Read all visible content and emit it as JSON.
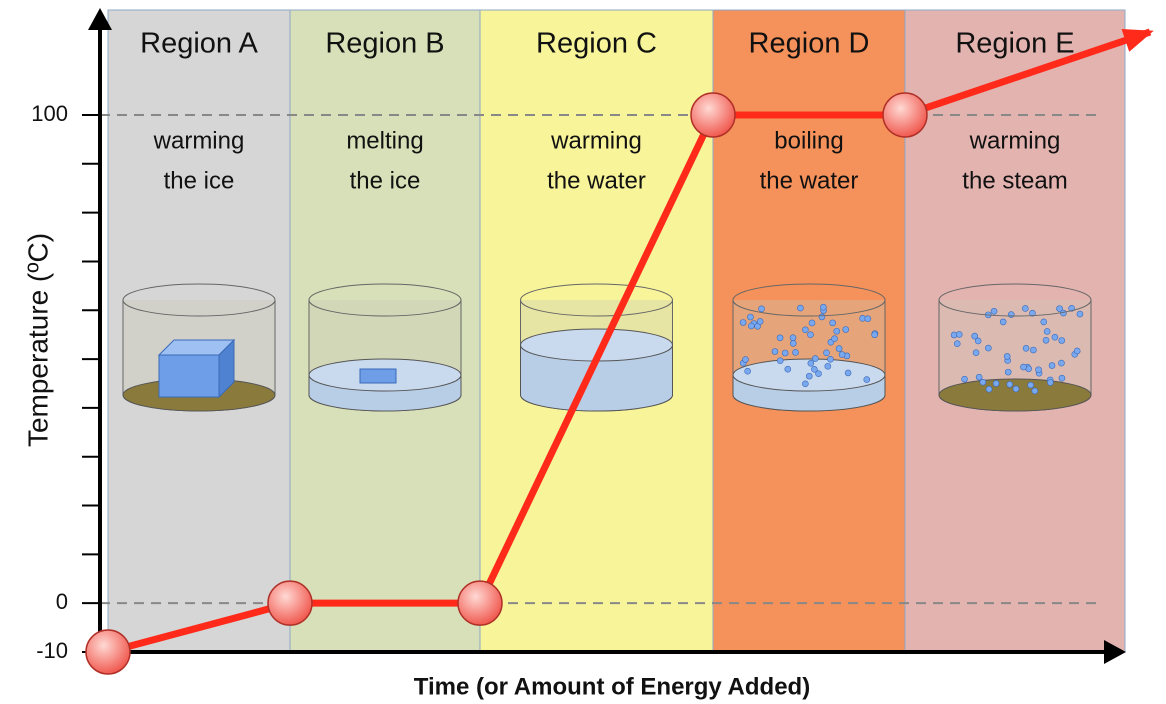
{
  "chart_data": {
    "type": "line",
    "x_label": "Time (or Amount of Energy Added)",
    "y_label": "Temperature (ºC)",
    "regions": [
      {
        "name": "Region A",
        "description": [
          "warming",
          "the ice"
        ],
        "color": "#d6d6d6"
      },
      {
        "name": "Region B",
        "description": [
          "melting",
          "the ice"
        ],
        "color": "#d7e0b8"
      },
      {
        "name": "Region C",
        "description": [
          "warming",
          "the water"
        ],
        "color": "#f7f49a"
      },
      {
        "name": "Region D",
        "description": [
          "boiling",
          "the water"
        ],
        "color": "#f5915a"
      },
      {
        "name": "Region E",
        "description": [
          "warming",
          "the steam"
        ],
        "color": "#e3b3b0"
      }
    ],
    "values": [
      -10,
      0,
      0,
      100,
      100,
      117
    ],
    "color": "#ff2a1a",
    "ylim": [
      -10,
      117
    ],
    "yticks": [
      -10,
      0,
      100
    ],
    "yticks_minor": [
      10,
      20,
      30,
      40,
      50,
      60,
      70,
      80,
      90
    ],
    "hlines": [
      0,
      100
    ]
  }
}
